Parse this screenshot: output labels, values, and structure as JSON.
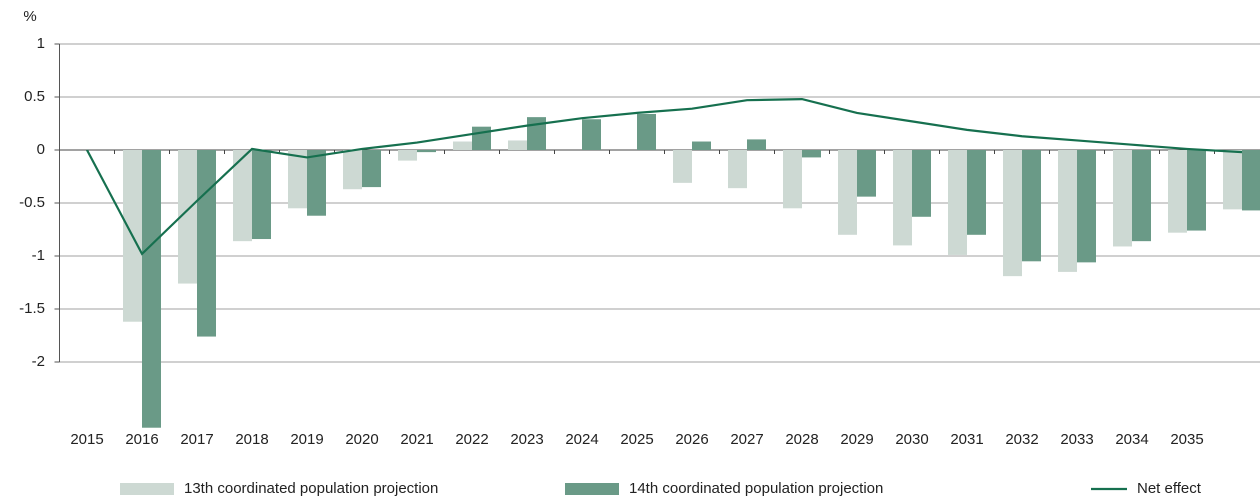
{
  "chart_data": {
    "type": "bar",
    "y_label": "%",
    "categories": [
      "2015",
      "2016",
      "2017",
      "2018",
      "2019",
      "2020",
      "2021",
      "2022",
      "2023",
      "2024",
      "2025",
      "2026",
      "2027",
      "2028",
      "2029",
      "2030",
      "2031",
      "2032",
      "2033",
      "2034",
      "2035",
      null
    ],
    "series": [
      {
        "name": "13th coordinated population projection",
        "type": "bar",
        "color": "#cdd9d3",
        "values": [
          null,
          -1.62,
          -1.26,
          -0.86,
          -0.55,
          -0.37,
          -0.1,
          0.08,
          0.09,
          null,
          null,
          -0.31,
          -0.36,
          -0.55,
          -0.8,
          -0.9,
          -0.99,
          -1.19,
          -1.15,
          -0.91,
          -0.78,
          -0.56
        ]
      },
      {
        "name": "14th coordinated population projection",
        "type": "bar",
        "color": "#6a9a87",
        "values": [
          null,
          -2.62,
          -1.76,
          -0.84,
          -0.62,
          -0.35,
          -0.02,
          0.22,
          0.31,
          0.29,
          0.34,
          0.08,
          0.1,
          -0.07,
          -0.44,
          -0.63,
          -0.8,
          -1.05,
          -1.06,
          -0.86,
          -0.76,
          -0.57
        ]
      },
      {
        "name": "Net effect",
        "type": "line",
        "color": "#16704f",
        "values": [
          0,
          -0.98,
          -0.48,
          0.01,
          -0.07,
          0.01,
          0.07,
          0.15,
          0.23,
          0.3,
          0.35,
          0.39,
          0.47,
          0.48,
          0.35,
          0.27,
          0.19,
          0.13,
          0.09,
          0.05,
          0.01,
          -0.02
        ]
      }
    ],
    "ylim": [
      -2.6,
      1
    ],
    "yticks": [
      1,
      0.5,
      0,
      -0.5,
      -1,
      -1.5,
      -2
    ],
    "grid": true
  }
}
